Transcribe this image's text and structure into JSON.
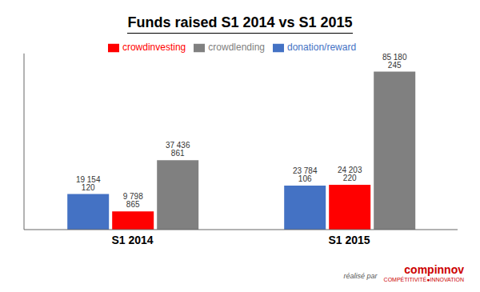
{
  "chart_data": {
    "type": "bar",
    "title": "Funds raised S1 2014 vs S1 2015",
    "categories": [
      "S1 2014",
      "S1 2015"
    ],
    "series": [
      {
        "name": "donation/reward",
        "color": "#4472C4",
        "values": [
          19154120,
          23784106
        ],
        "value_labels": [
          "19 154 120",
          "23 784 106"
        ]
      },
      {
        "name": "crowdinvesting",
        "color": "#FF0000",
        "values": [
          9798865,
          24203220
        ],
        "value_labels": [
          "9 798 865",
          "24 203 220"
        ]
      },
      {
        "name": "crowdlending",
        "color": "#808080",
        "values": [
          37436861,
          85180245
        ],
        "value_labels": [
          "37 436 861",
          "85 180 245"
        ]
      }
    ],
    "ylim": [
      0,
      95000000
    ],
    "data_labels": true,
    "tick_labels": "x",
    "grid": false,
    "legend": "top",
    "annotations": [
      "réalisé par",
      "compinnov",
      "COMPÉTITIVITÉ●INNOVATION"
    ]
  }
}
